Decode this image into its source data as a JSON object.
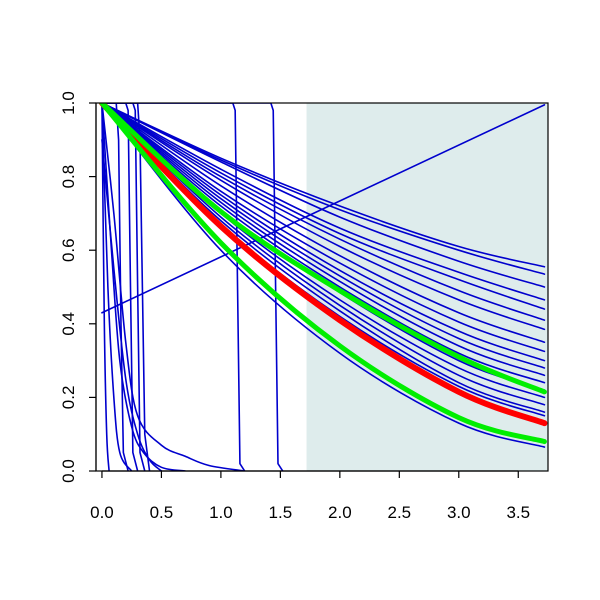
{
  "chart_data": {
    "type": "line",
    "title": "",
    "xlabel": "",
    "ylabel": "",
    "xlim": [
      -0.05,
      3.75
    ],
    "ylim": [
      0,
      1
    ],
    "x_ticks": [
      0.0,
      0.5,
      1.0,
      1.5,
      2.0,
      2.5,
      3.0,
      3.5
    ],
    "x_tick_labels": [
      "0.0",
      "0.5",
      "1.0",
      "1.5",
      "2.0",
      "2.5",
      "3.0",
      "3.5"
    ],
    "y_ticks": [
      0.0,
      0.2,
      0.4,
      0.6,
      0.8,
      1.0
    ],
    "y_tick_labels": [
      "0.0",
      "0.2",
      "0.4",
      "0.6",
      "0.8",
      "1.0"
    ],
    "grid": false,
    "shaded_region": {
      "x_from": 1.72,
      "x_to": 3.75,
      "color": "#deecec"
    },
    "colors": {
      "blue": "#0000cd",
      "red": "#ff0000",
      "green": "#00ee00"
    },
    "series": [
      {
        "color": "blue",
        "kind": "decay",
        "end_value": 0.555,
        "points": [
          [
            0.0,
            1.0
          ],
          [
            1.0,
            0.85
          ],
          [
            2.0,
            0.72
          ],
          [
            3.0,
            0.61
          ],
          [
            3.72,
            0.555
          ]
        ]
      },
      {
        "color": "blue",
        "kind": "decay",
        "end_value": 0.535,
        "points": [
          [
            0.0,
            1.0
          ],
          [
            1.0,
            0.845
          ],
          [
            2.0,
            0.71
          ],
          [
            3.0,
            0.6
          ],
          [
            3.72,
            0.535
          ]
        ]
      },
      {
        "color": "blue",
        "kind": "decay",
        "end_value": 0.5,
        "points": [
          [
            0.0,
            1.0
          ],
          [
            1.0,
            0.84
          ],
          [
            2.0,
            0.69
          ],
          [
            3.0,
            0.57
          ],
          [
            3.72,
            0.5
          ]
        ]
      },
      {
        "color": "blue",
        "kind": "decay",
        "end_value": 0.465,
        "points": [
          [
            0.0,
            1.0
          ],
          [
            1.0,
            0.82
          ],
          [
            2.0,
            0.66
          ],
          [
            3.0,
            0.54
          ],
          [
            3.72,
            0.465
          ]
        ]
      },
      {
        "color": "blue",
        "kind": "decay",
        "end_value": 0.44,
        "points": [
          [
            0.0,
            1.0
          ],
          [
            1.0,
            0.81
          ],
          [
            2.0,
            0.645
          ],
          [
            3.0,
            0.52
          ],
          [
            3.72,
            0.44
          ]
        ]
      },
      {
        "color": "blue",
        "kind": "decay",
        "end_value": 0.41,
        "points": [
          [
            0.0,
            1.0
          ],
          [
            1.0,
            0.8
          ],
          [
            2.0,
            0.63
          ],
          [
            3.0,
            0.49
          ],
          [
            3.72,
            0.41
          ]
        ]
      },
      {
        "color": "blue",
        "kind": "decay",
        "end_value": 0.385,
        "points": [
          [
            0.0,
            1.0
          ],
          [
            1.0,
            0.79
          ],
          [
            2.0,
            0.61
          ],
          [
            3.0,
            0.465
          ],
          [
            3.72,
            0.385
          ]
        ]
      },
      {
        "color": "blue",
        "kind": "decay",
        "end_value": 0.35,
        "points": [
          [
            0.0,
            1.0
          ],
          [
            1.0,
            0.775
          ],
          [
            2.0,
            0.585
          ],
          [
            3.0,
            0.43
          ],
          [
            3.72,
            0.35
          ]
        ]
      },
      {
        "color": "blue",
        "kind": "decay",
        "end_value": 0.325,
        "points": [
          [
            0.0,
            1.0
          ],
          [
            1.0,
            0.76
          ],
          [
            2.0,
            0.565
          ],
          [
            3.0,
            0.405
          ],
          [
            3.72,
            0.325
          ]
        ]
      },
      {
        "color": "blue",
        "kind": "decay",
        "end_value": 0.3,
        "points": [
          [
            0.0,
            1.0
          ],
          [
            1.0,
            0.75
          ],
          [
            2.0,
            0.545
          ],
          [
            3.0,
            0.38
          ],
          [
            3.72,
            0.3
          ]
        ]
      },
      {
        "color": "blue",
        "kind": "decay",
        "end_value": 0.28,
        "points": [
          [
            0.0,
            1.0
          ],
          [
            1.0,
            0.74
          ],
          [
            2.0,
            0.53
          ],
          [
            3.0,
            0.36
          ],
          [
            3.72,
            0.28
          ]
        ]
      },
      {
        "color": "blue",
        "kind": "decay",
        "end_value": 0.26,
        "points": [
          [
            0.0,
            1.0
          ],
          [
            1.0,
            0.73
          ],
          [
            2.0,
            0.515
          ],
          [
            3.0,
            0.34
          ],
          [
            3.72,
            0.26
          ]
        ]
      },
      {
        "color": "blue",
        "kind": "decay",
        "end_value": 0.24,
        "points": [
          [
            0.0,
            1.0
          ],
          [
            1.0,
            0.72
          ],
          [
            2.0,
            0.5
          ],
          [
            3.0,
            0.32
          ],
          [
            3.72,
            0.24
          ]
        ]
      },
      {
        "color": "blue",
        "kind": "decay",
        "end_value": 0.22,
        "points": [
          [
            0.0,
            1.0
          ],
          [
            1.0,
            0.71
          ],
          [
            2.0,
            0.485
          ],
          [
            3.0,
            0.3
          ],
          [
            3.72,
            0.22
          ]
        ]
      },
      {
        "color": "blue",
        "kind": "decay",
        "end_value": 0.2,
        "points": [
          [
            0.0,
            1.0
          ],
          [
            1.0,
            0.7
          ],
          [
            2.0,
            0.465
          ],
          [
            3.0,
            0.28
          ],
          [
            3.72,
            0.2
          ]
        ]
      },
      {
        "color": "blue",
        "kind": "decay",
        "end_value": 0.18,
        "points": [
          [
            0.0,
            1.0
          ],
          [
            1.0,
            0.69
          ],
          [
            2.0,
            0.45
          ],
          [
            3.0,
            0.26
          ],
          [
            3.72,
            0.18
          ]
        ]
      },
      {
        "color": "blue",
        "kind": "decay",
        "end_value": 0.16,
        "points": [
          [
            0.0,
            1.0
          ],
          [
            1.0,
            0.68
          ],
          [
            2.0,
            0.435
          ],
          [
            3.0,
            0.24
          ],
          [
            3.72,
            0.16
          ]
        ]
      },
      {
        "color": "blue",
        "kind": "decay",
        "end_value": 0.15,
        "points": [
          [
            0.0,
            1.0
          ],
          [
            1.0,
            0.67
          ],
          [
            2.0,
            0.42
          ],
          [
            3.0,
            0.23
          ],
          [
            3.72,
            0.15
          ]
        ]
      },
      {
        "color": "blue",
        "kind": "decay",
        "end_value": 0.065,
        "points": [
          [
            0.0,
            1.0
          ],
          [
            1.0,
            0.6
          ],
          [
            2.0,
            0.32
          ],
          [
            3.0,
            0.13
          ],
          [
            3.72,
            0.065
          ]
        ]
      },
      {
        "color": "blue",
        "kind": "rising",
        "points": [
          [
            0.0,
            0.43
          ],
          [
            3.72,
            0.995
          ]
        ]
      },
      {
        "color": "blue",
        "kind": "step",
        "points": [
          [
            0.0,
            1.0
          ],
          [
            1.1,
            1.0
          ],
          [
            1.12,
            0.98
          ],
          [
            1.14,
            0.5
          ],
          [
            1.16,
            0.02
          ],
          [
            1.2,
            0.0
          ]
        ]
      },
      {
        "color": "blue",
        "kind": "step",
        "points": [
          [
            0.0,
            1.0
          ],
          [
            1.42,
            1.0
          ],
          [
            1.44,
            0.98
          ],
          [
            1.46,
            0.5
          ],
          [
            1.48,
            0.02
          ],
          [
            1.52,
            0.0
          ]
        ]
      },
      {
        "color": "blue",
        "kind": "step",
        "points": [
          [
            0.0,
            1.0
          ],
          [
            0.2,
            1.0
          ],
          [
            0.22,
            0.98
          ],
          [
            0.24,
            0.5
          ],
          [
            0.26,
            0.05
          ],
          [
            0.3,
            0.0
          ]
        ]
      },
      {
        "color": "blue",
        "kind": "step",
        "points": [
          [
            0.0,
            1.0
          ],
          [
            0.26,
            1.0
          ],
          [
            0.28,
            0.98
          ],
          [
            0.3,
            0.5
          ],
          [
            0.32,
            0.05
          ],
          [
            0.36,
            0.0
          ]
        ]
      },
      {
        "color": "blue",
        "kind": "step",
        "points": [
          [
            0.0,
            1.0
          ],
          [
            0.3,
            1.0
          ],
          [
            0.32,
            0.9
          ],
          [
            0.34,
            0.5
          ],
          [
            0.36,
            0.1
          ],
          [
            0.4,
            0.0
          ]
        ]
      },
      {
        "color": "blue",
        "kind": "step",
        "points": [
          [
            0.0,
            1.0
          ],
          [
            0.12,
            1.0
          ],
          [
            0.14,
            0.9
          ],
          [
            0.16,
            0.4
          ],
          [
            0.18,
            0.05
          ],
          [
            0.22,
            0.0
          ]
        ]
      },
      {
        "color": "blue",
        "kind": "fast-decay",
        "points": [
          [
            0.0,
            1.0
          ],
          [
            0.1,
            0.7
          ],
          [
            0.2,
            0.35
          ],
          [
            0.3,
            0.15
          ],
          [
            0.5,
            0.07
          ],
          [
            0.7,
            0.04
          ],
          [
            0.9,
            0.015
          ],
          [
            1.2,
            0.0
          ]
        ]
      },
      {
        "color": "blue",
        "kind": "fast-decay",
        "points": [
          [
            0.0,
            1.0
          ],
          [
            0.08,
            0.6
          ],
          [
            0.15,
            0.3
          ],
          [
            0.25,
            0.12
          ],
          [
            0.35,
            0.05
          ],
          [
            0.5,
            0.01
          ],
          [
            0.7,
            0.0
          ]
        ]
      },
      {
        "color": "blue",
        "kind": "fast-decay",
        "points": [
          [
            0.0,
            1.0
          ],
          [
            0.05,
            0.5
          ],
          [
            0.1,
            0.2
          ],
          [
            0.15,
            0.05
          ],
          [
            0.25,
            0.0
          ]
        ]
      },
      {
        "color": "blue",
        "kind": "fast-decay",
        "points": [
          [
            0.0,
            1.0
          ],
          [
            0.02,
            0.4
          ],
          [
            0.04,
            0.1
          ],
          [
            0.06,
            0.0
          ]
        ]
      },
      {
        "color": "blue",
        "kind": "fast-decay",
        "points": [
          [
            0.0,
            0.9
          ],
          [
            0.1,
            0.55
          ],
          [
            0.2,
            0.25
          ],
          [
            0.3,
            0.1
          ],
          [
            0.4,
            0.03
          ],
          [
            0.5,
            0.0
          ]
        ]
      },
      {
        "color": "red",
        "kind": "decay",
        "end_value": 0.13,
        "points": [
          [
            0.0,
            1.0
          ],
          [
            1.0,
            0.665
          ],
          [
            2.0,
            0.41
          ],
          [
            3.0,
            0.215
          ],
          [
            3.72,
            0.13
          ]
        ]
      },
      {
        "color": "green",
        "kind": "decay",
        "end_value": 0.215,
        "points": [
          [
            0.0,
            1.0
          ],
          [
            1.0,
            0.705
          ],
          [
            2.0,
            0.49
          ],
          [
            3.0,
            0.31
          ],
          [
            3.72,
            0.215
          ]
        ]
      },
      {
        "color": "green",
        "kind": "decay",
        "end_value": 0.08,
        "points": [
          [
            0.0,
            1.0
          ],
          [
            1.0,
            0.62
          ],
          [
            2.0,
            0.34
          ],
          [
            3.0,
            0.145
          ],
          [
            3.72,
            0.08
          ]
        ]
      }
    ]
  }
}
